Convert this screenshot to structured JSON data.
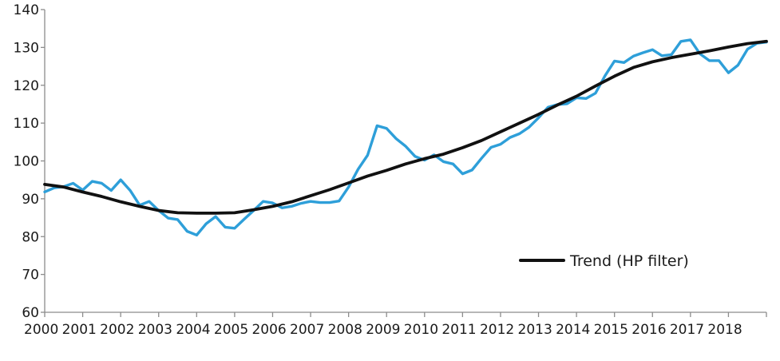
{
  "chart_data": {
    "type": "line",
    "title": "",
    "xlabel": "",
    "ylabel": "",
    "ylim": [
      60,
      140
    ],
    "yticks": [
      60,
      70,
      80,
      90,
      100,
      110,
      120,
      130,
      140
    ],
    "x_tick_labels": [
      "2000",
      "2001",
      "2002",
      "2003",
      "2004",
      "2005",
      "2006",
      "2007",
      "2008",
      "2009",
      "2010",
      "2011",
      "2012",
      "2013",
      "2014",
      "2015",
      "2016",
      "2017",
      "2018"
    ],
    "x_range": [
      2000,
      2019
    ],
    "grid": false,
    "legend_position": "bottom-right",
    "legend_entries": [
      "Trend (HP filter)"
    ],
    "series": [
      {
        "name": "",
        "color": "#2e9fd9",
        "x": [
          2000.0,
          2000.25,
          2000.5,
          2000.75,
          2001.0,
          2001.25,
          2001.5,
          2001.75,
          2002.0,
          2002.25,
          2002.5,
          2002.75,
          2003.0,
          2003.25,
          2003.5,
          2003.75,
          2004.0,
          2004.25,
          2004.5,
          2004.75,
          2005.0,
          2005.25,
          2005.5,
          2005.75,
          2006.0,
          2006.25,
          2006.5,
          2006.75,
          2007.0,
          2007.25,
          2007.5,
          2007.75,
          2008.0,
          2008.25,
          2008.5,
          2008.75,
          2009.0,
          2009.25,
          2009.5,
          2009.75,
          2010.0,
          2010.25,
          2010.5,
          2010.75,
          2011.0,
          2011.25,
          2011.5,
          2011.75,
          2012.0,
          2012.25,
          2012.5,
          2012.75,
          2013.0,
          2013.25,
          2013.5,
          2013.75,
          2014.0,
          2014.25,
          2014.5,
          2014.75,
          2015.0,
          2015.25,
          2015.5,
          2015.75,
          2016.0,
          2016.25,
          2016.5,
          2016.75,
          2017.0,
          2017.25,
          2017.5,
          2017.75,
          2018.0,
          2018.25,
          2018.5,
          2018.75,
          2019.0
        ],
        "values": [
          91.8,
          92.9,
          93.2,
          94.1,
          92.3,
          94.6,
          94.1,
          92.2,
          95.0,
          92.2,
          88.3,
          89.3,
          86.9,
          84.9,
          84.5,
          81.4,
          80.4,
          83.4,
          85.3,
          82.5,
          82.2,
          84.6,
          86.9,
          89.3,
          88.9,
          87.6,
          88.0,
          88.8,
          89.3,
          89.0,
          89.0,
          89.4,
          93.1,
          97.8,
          101.5,
          109.3,
          108.6,
          105.9,
          103.9,
          101.2,
          100.2,
          101.6,
          99.8,
          99.2,
          96.6,
          97.6,
          100.7,
          103.6,
          104.4,
          106.2,
          107.2,
          108.9,
          111.4,
          114.2,
          114.9,
          115.1,
          116.7,
          116.5,
          117.9,
          122.5,
          126.4,
          126.0,
          127.7,
          128.6,
          129.4,
          127.8,
          128.1,
          131.6,
          132.0,
          128.3,
          126.5,
          126.5,
          123.3,
          125.3,
          129.5,
          131.1,
          131.4
        ]
      },
      {
        "name": "Trend (HP filter)",
        "color": "#111111",
        "x": [
          2000.0,
          2000.5,
          2001.0,
          2001.5,
          2002.0,
          2002.5,
          2003.0,
          2003.5,
          2004.0,
          2004.5,
          2005.0,
          2005.5,
          2006.0,
          2006.5,
          2007.0,
          2007.5,
          2008.0,
          2008.5,
          2009.0,
          2009.5,
          2010.0,
          2010.5,
          2011.0,
          2011.5,
          2012.0,
          2012.5,
          2013.0,
          2013.5,
          2014.0,
          2014.5,
          2015.0,
          2015.5,
          2016.0,
          2016.5,
          2017.0,
          2017.5,
          2018.0,
          2018.5,
          2019.0
        ],
        "values": [
          93.8,
          93.1,
          91.8,
          90.6,
          89.2,
          88.0,
          86.9,
          86.3,
          86.2,
          86.2,
          86.3,
          87.1,
          88.0,
          89.2,
          90.8,
          92.4,
          94.2,
          96.0,
          97.5,
          99.2,
          100.6,
          101.8,
          103.5,
          105.4,
          107.7,
          110.0,
          112.3,
          114.8,
          117.1,
          119.8,
          122.4,
          124.7,
          126.2,
          127.3,
          128.2,
          129.1,
          130.1,
          131.0,
          131.6
        ]
      }
    ]
  }
}
